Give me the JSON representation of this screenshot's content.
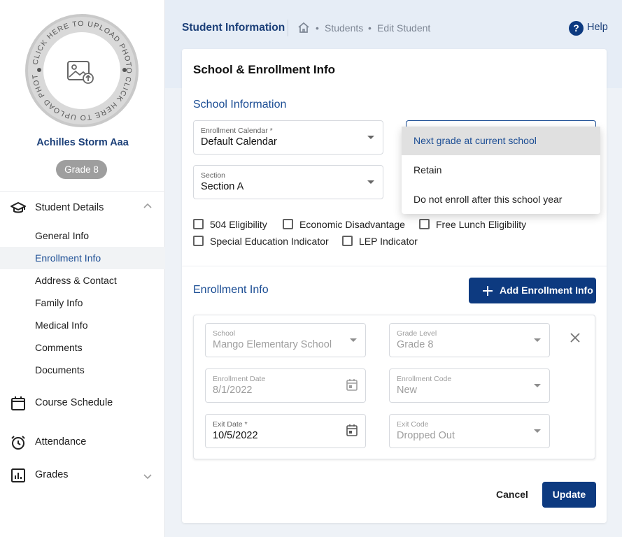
{
  "sidebar": {
    "photo_caption": "CLICK HERE TO UPLOAD PHOTO",
    "student_name": "Achilles Storm Aaa",
    "grade_badge": "Grade 8",
    "nav": {
      "student_details": "Student Details",
      "sub_items": [
        "General Info",
        "Enrollment Info",
        "Address & Contact",
        "Family Info",
        "Medical Info",
        "Comments",
        "Documents"
      ],
      "course_schedule": "Course Schedule",
      "attendance": "Attendance",
      "grades": "Grades"
    }
  },
  "header": {
    "title": "Student Information",
    "breadcrumb": [
      "Students",
      "Edit Student"
    ],
    "help_label": "Help"
  },
  "card": {
    "title": "School & Enrollment Info",
    "school_section": {
      "title": "School Information",
      "enrollment_calendar": {
        "label": "Enrollment Calendar *",
        "value": "Default Calendar"
      },
      "section": {
        "label": "Section",
        "value": "Section A"
      },
      "next_year_options": [
        "Next grade at current school",
        "Retain",
        "Do not enroll after this school year"
      ],
      "checkboxes": [
        "504 Eligibility",
        "Economic Disadvantage",
        "Free Lunch Eligibility",
        "Special Education Indicator",
        "LEP Indicator"
      ]
    },
    "enrollment_section": {
      "title": "Enrollment Info",
      "add_button": "Add Enrollment Info",
      "school": {
        "label": "School",
        "value": "Mango Elementary School"
      },
      "grade_level": {
        "label": "Grade Level",
        "value": "Grade 8"
      },
      "enrollment_date": {
        "label": "Enrollment Date",
        "value": "8/1/2022"
      },
      "enrollment_code": {
        "label": "Enrollment Code",
        "value": "New"
      },
      "exit_date": {
        "label": "Exit Date *",
        "value": "10/5/2022"
      },
      "exit_code": {
        "label": "Exit Code",
        "value": "Dropped Out"
      }
    },
    "cancel_label": "Cancel",
    "update_label": "Update"
  },
  "colors": {
    "brand": "#0d3a80",
    "accent_text": "#1b4d94",
    "header_bg": "#e6edf6"
  }
}
